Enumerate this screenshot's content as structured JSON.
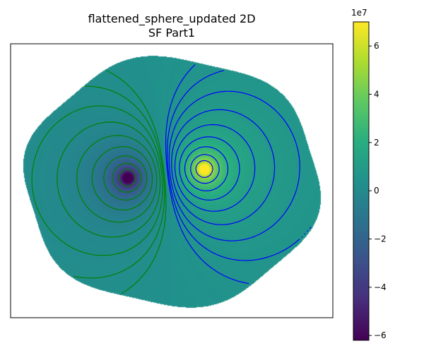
{
  "chart_data": {
    "type": "heatmap",
    "title": "flattened_sphere_updated 2D",
    "subtitle": "SF Part1",
    "xlabel": "",
    "ylabel": "",
    "axes_ticks": "none",
    "colormap": "viridis",
    "colorbar": {
      "min": -62000000,
      "max": 70000000,
      "ticks": [
        -6,
        -4,
        -2,
        0,
        2,
        4,
        6
      ],
      "tick_labels": [
        "−6",
        "−4",
        "−2",
        "0",
        "2",
        "4",
        "6"
      ],
      "multiplier": "1e7",
      "placement": "right"
    },
    "domain": {
      "xlim": [
        -1,
        1
      ],
      "ylim": [
        -1,
        1
      ],
      "shape": "flattened-circle"
    },
    "sources": [
      {
        "name": "negative-pole",
        "x": -0.3,
        "y": 0.03,
        "value": -62000000
      },
      {
        "name": "positive-pole",
        "x": 0.22,
        "y": 0.1,
        "value": 70000000
      }
    ],
    "contours": {
      "negative_color": "#008000",
      "positive_color": "#0000ff",
      "negative_levels": 9,
      "positive_levels": 9
    }
  }
}
